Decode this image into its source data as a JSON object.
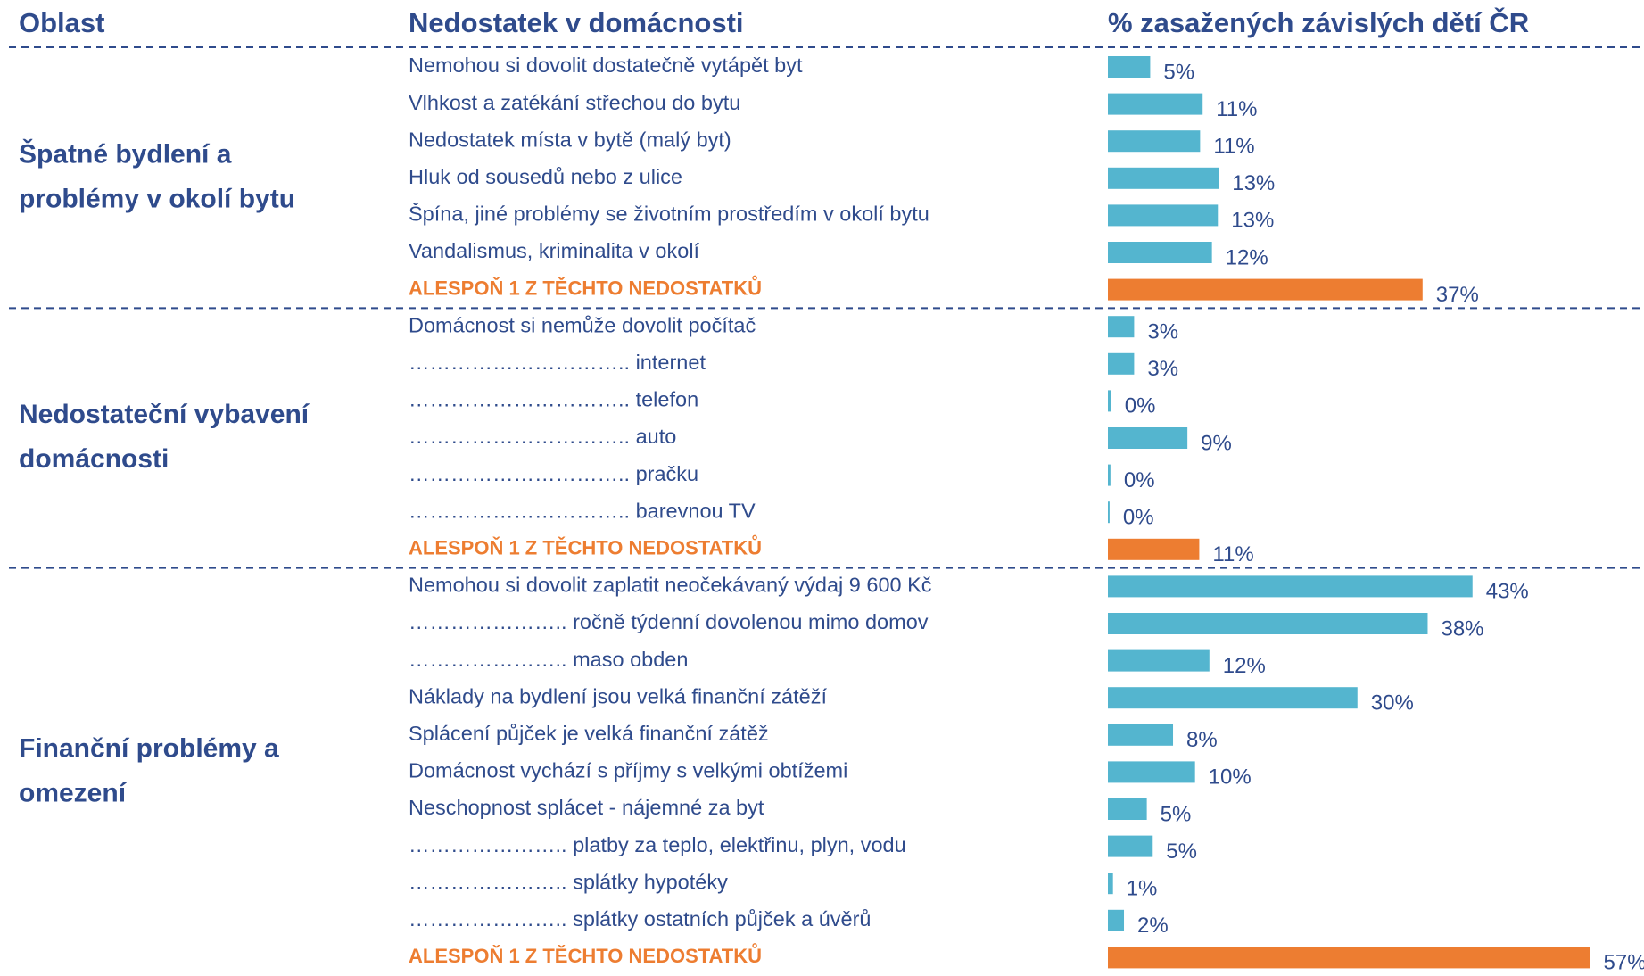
{
  "chart_data": {
    "type": "bar",
    "headers": [
      "Oblast",
      "Nedostatek v domácnosti",
      "% zasažených závislých dětí ČR"
    ],
    "color": "#54b5cf",
    "total_color": "#ed7d31",
    "xlim": [
      0,
      60
    ],
    "groups": [
      {
        "label": [
          "Špatné bydlení a",
          "problémy v okolí bytu"
        ],
        "categories": [
          "Nemohou si dovolit dostatečně vytápět byt",
          "Vlhkost a zatékání střechou do bytu",
          "Nedostatek místa v bytě (malý byt)",
          "Hluk od sousedů nebo z ulice",
          "Špína, jiné problémy se životním prostředím v okolí bytu",
          "Vandalismus, kriminalita v okolí"
        ],
        "values": [
          5.0,
          11.2,
          10.9,
          13.1,
          13.0,
          12.3
        ],
        "value_labels": [
          "5%",
          "11%",
          "11%",
          "13%",
          "13%",
          "12%"
        ],
        "total": {
          "category": "ALESPOŇ 1 Z TĚCHTO NEDOSTATKŮ",
          "value": 37.2,
          "value_label": "37%"
        }
      },
      {
        "label": [
          "Nedostateční vybavení",
          "domácnosti"
        ],
        "categories": [
          "Domácnost si nemůže dovolit počítač",
          "………………………….. internet",
          "………………………….. telefon",
          "………………………….. auto",
          "………………………….. pračku",
          "………………………….. barevnou TV"
        ],
        "values": [
          3.1,
          3.1,
          0.4,
          9.4,
          0.3,
          0.2
        ],
        "value_labels": [
          "3%",
          "3%",
          "0%",
          "9%",
          "0%",
          "0%"
        ],
        "total": {
          "category": "ALESPOŇ 1 Z TĚCHTO NEDOSTATKŮ",
          "value": 10.8,
          "value_label": "11%"
        }
      },
      {
        "label": [
          "Finanční problémy a",
          "omezení"
        ],
        "categories": [
          "Nemohou si dovolit zaplatit neočekávaný výdaj 9 600 Kč",
          "………………….. ročně týdenní dovolenou mimo domov",
          "………………….. maso obden",
          "Náklady na bydlení jsou velká finanční zátěží",
          "Splácení půjček je velká finanční zátěž",
          "Domácnost vychází s příjmy s velkými obtížemi",
          "Neschopnost splácet - nájemné za byt",
          " ………………….. platby za teplo, elektřinu, plyn, vodu",
          "………………….. splátky hypotéky",
          "………………….. splátky ostatních půjček a úvěrů"
        ],
        "values": [
          43.1,
          37.8,
          12,
          29.5,
          7.7,
          10.3,
          4.6,
          5.3,
          0.6,
          1.9
        ],
        "value_labels": [
          "43%",
          "38%",
          "12%",
          "30%",
          "8%",
          "10%",
          "5%",
          "5%",
          "1%",
          "2%"
        ],
        "total": {
          "category": "ALESPOŇ 1 Z TĚCHTO NEDOSTATKŮ",
          "value": 57,
          "value_label": "57%"
        }
      }
    ]
  }
}
